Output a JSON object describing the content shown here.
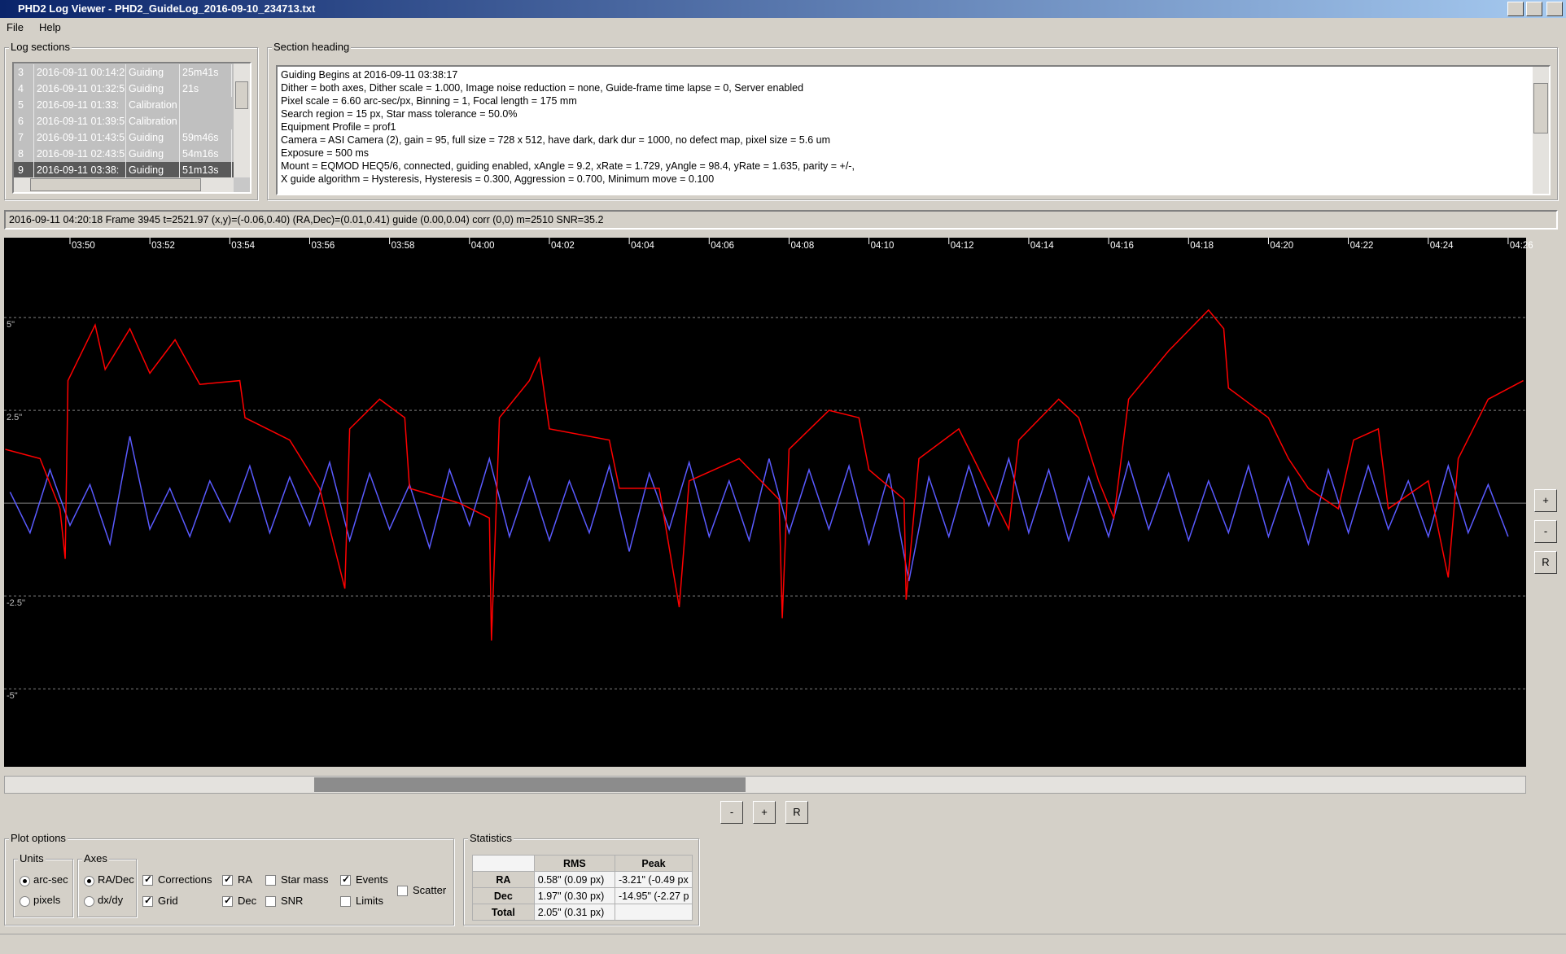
{
  "window": {
    "title": "PHD2 Log Viewer - PHD2_GuideLog_2016-09-10_234713.txt"
  },
  "menu": [
    "File",
    "Help"
  ],
  "log_sections": {
    "label": "Log sections",
    "rows": [
      [
        "3",
        "2016-09-11 00:14:2",
        "Guiding",
        "25m41s"
      ],
      [
        "4",
        "2016-09-11 01:32:5",
        "Guiding",
        "21s"
      ],
      [
        "5",
        "2016-09-11 01:33:",
        "Calibration"
      ],
      [
        "6",
        "2016-09-11 01:39:5",
        "Calibration"
      ],
      [
        "7",
        "2016-09-11 01:43:5",
        "Guiding",
        "59m46s"
      ],
      [
        "8",
        "2016-09-11 02:43:5",
        "Guiding",
        "54m16s"
      ],
      [
        "9",
        "2016-09-11 03:38:",
        "Guiding",
        "51m13s"
      ]
    ],
    "selected": 6
  },
  "section_heading": {
    "label": "Section heading",
    "lines": [
      "Guiding Begins at 2016-09-11 03:38:17",
      "Dither = both axes, Dither scale = 1.000, Image noise reduction = none, Guide-frame time lapse = 0, Server enabled",
      "Pixel scale = 6.60 arc-sec/px, Binning = 1, Focal length = 175 mm",
      "Search region = 15 px, Star mass tolerance = 50.0%",
      "Equipment Profile = prof1",
      "Camera = ASI Camera (2), gain = 95, full size = 728 x 512, have dark, dark dur = 1000, no defect map, pixel size = 5.6 um",
      "Exposure = 500 ms",
      "Mount = EQMOD HEQ5/6,  connected, guiding enabled, xAngle = 9.2, xRate = 1.729, yAngle = 98.4, yRate = 1.635, parity = +/-,",
      "X guide algorithm = Hysteresis, Hysteresis = 0.300, Aggression = 0.700, Minimum move = 0.100"
    ]
  },
  "status": "2016-09-11 04:20:18 Frame 3945 t=2521.97 (x,y)=(-0.06,0.40) (RA,Dec)=(0.01,0.41) guide (0.00,0.04) corr (0,0) m=2510 SNR=35.2",
  "chart_data": {
    "type": "line",
    "grid": true,
    "xlim": [
      228.35,
      266.45
    ],
    "xticks": [
      {
        "value": 230,
        "label": "03:50"
      },
      {
        "value": 232,
        "label": "03:52"
      },
      {
        "value": 234,
        "label": "03:54"
      },
      {
        "value": 236,
        "label": "03:56"
      },
      {
        "value": 238,
        "label": "03:58"
      },
      {
        "value": 240,
        "label": "04:00"
      },
      {
        "value": 242,
        "label": "04:02"
      },
      {
        "value": 244,
        "label": "04:04"
      },
      {
        "value": 246,
        "label": "04:06"
      },
      {
        "value": 248,
        "label": "04:08"
      },
      {
        "value": 250,
        "label": "04:10"
      },
      {
        "value": 252,
        "label": "04:12"
      },
      {
        "value": 254,
        "label": "04:14"
      },
      {
        "value": 256,
        "label": "04:16"
      },
      {
        "value": 258,
        "label": "04:18"
      },
      {
        "value": 260,
        "label": "04:20"
      },
      {
        "value": 262,
        "label": "04:22"
      },
      {
        "value": 264,
        "label": "04:24"
      },
      {
        "value": 266,
        "label": "04:26"
      }
    ],
    "ylim": [
      -7.1,
      7.15
    ],
    "yticks": [
      {
        "value": 5,
        "label": "5\""
      },
      {
        "value": 2.5,
        "label": "2.5\""
      },
      {
        "value": -2.5,
        "label": "-2.5\""
      },
      {
        "value": -5,
        "label": "-5\""
      }
    ],
    "series": [
      {
        "color": "#5a5aff",
        "x": [
          228.5,
          229,
          229.5,
          230,
          230.5,
          231,
          231.5,
          232,
          232.5,
          233,
          233.5,
          234,
          234.5,
          235,
          235.5,
          236,
          236.5,
          237,
          237.5,
          238,
          238.5,
          239,
          239.5,
          240,
          240.5,
          241,
          241.5,
          242,
          242.5,
          243,
          243.5,
          244,
          244.5,
          245,
          245.5,
          246,
          246.5,
          247,
          247.5,
          248,
          248.5,
          249,
          249.5,
          250,
          250.5,
          251,
          251.5,
          252,
          252.5,
          253,
          253.5,
          254,
          254.5,
          255,
          255.5,
          256,
          256.5,
          257,
          257.5,
          258,
          258.5,
          259,
          259.5,
          260,
          260.5,
          261,
          261.5,
          262,
          262.5,
          263,
          263.5,
          264,
          264.5,
          265,
          265.5,
          266
        ],
        "values": [
          0.3,
          -0.8,
          0.9,
          -0.6,
          0.5,
          -1.1,
          1.8,
          -0.7,
          0.4,
          -0.9,
          0.6,
          -0.5,
          1.0,
          -0.8,
          0.7,
          -0.6,
          1.1,
          -1.0,
          0.8,
          -0.7,
          0.5,
          -1.2,
          0.9,
          -0.6,
          1.2,
          -0.9,
          0.7,
          -1.0,
          0.6,
          -0.8,
          1.0,
          -1.3,
          0.8,
          -0.7,
          1.1,
          -0.9,
          0.6,
          -1.0,
          1.2,
          -0.8,
          0.9,
          -0.7,
          1.0,
          -1.1,
          0.8,
          -2.1,
          0.7,
          -0.9,
          1.0,
          -0.6,
          1.2,
          -0.8,
          0.9,
          -1.0,
          0.7,
          -0.9,
          1.1,
          -0.7,
          0.8,
          -1.0,
          0.6,
          -0.8,
          1.0,
          -0.9,
          0.7,
          -1.1,
          0.9,
          -0.8,
          1.0,
          -0.7,
          0.6,
          -0.9,
          1.0,
          -0.8,
          0.5,
          -0.9
        ]
      },
      {
        "color": "#ff0000",
        "x": [
          228.38,
          229.25,
          229.75,
          229.88,
          229.95,
          230.63,
          230.88,
          231.5,
          232,
          232.63,
          233.25,
          234.25,
          234.38,
          235.5,
          236.25,
          236.88,
          237,
          237.75,
          238.38,
          238.5,
          239.75,
          240.5,
          240.55,
          240.75,
          241.5,
          241.75,
          242,
          243.5,
          243.75,
          244.75,
          245.25,
          245.5,
          246.75,
          247.75,
          247.83,
          248,
          249,
          249.75,
          250,
          250.88,
          250.93,
          251.25,
          252.25,
          253.5,
          253.75,
          254.75,
          255.25,
          255.75,
          256.13,
          256.5,
          257.5,
          258.5,
          258.88,
          259,
          260,
          260.5,
          261,
          261.75,
          262.13,
          262.75,
          263,
          264,
          264.5,
          264.75,
          265.5,
          266.38
        ],
        "values": [
          1.45,
          1.2,
          -0.15,
          -1.5,
          3.3,
          4.8,
          3.6,
          4.7,
          3.5,
          4.4,
          3.2,
          3.3,
          2.3,
          1.7,
          0.4,
          -2.3,
          2.0,
          2.8,
          2.3,
          0.4,
          0,
          -0.4,
          -3.7,
          2.3,
          3.3,
          3.9,
          2.0,
          1.7,
          0.4,
          0.4,
          -2.8,
          0.6,
          1.2,
          0.1,
          -3.1,
          1.45,
          2.5,
          2.3,
          0.9,
          0.1,
          -2.6,
          1.2,
          2.0,
          -0.7,
          1.7,
          2.8,
          2.3,
          0.6,
          -0.4,
          2.8,
          4.1,
          5.2,
          4.7,
          3.1,
          2.3,
          1.2,
          0.4,
          -0.15,
          1.7,
          2.0,
          -0.15,
          0.6,
          -2.0,
          1.2,
          2.8,
          3.3
        ]
      }
    ]
  },
  "zoom_buttons": [
    "-",
    "+",
    "R"
  ],
  "side_buttons": [
    "+",
    "-",
    "R"
  ],
  "plot_options": {
    "label": "Plot options",
    "units": {
      "label": "Units",
      "options": [
        {
          "label": "arc-sec",
          "checked": true
        },
        {
          "label": "pixels",
          "checked": false
        }
      ]
    },
    "axes": {
      "label": "Axes",
      "options": [
        {
          "label": "RA/Dec",
          "checked": true
        },
        {
          "label": "dx/dy",
          "checked": false
        }
      ]
    },
    "checkboxes": [
      {
        "label": "Corrections",
        "checked": true
      },
      {
        "label": "Grid",
        "checked": true
      },
      {
        "label": "RA",
        "checked": true
      },
      {
        "label": "Dec",
        "checked": true
      },
      {
        "label": "Star mass",
        "checked": false
      },
      {
        "label": "SNR",
        "checked": false
      },
      {
        "label": "Events",
        "checked": true
      },
      {
        "label": "Limits",
        "checked": false
      },
      {
        "label": "Scatter",
        "checked": false
      }
    ]
  },
  "statistics": {
    "label": "Statistics",
    "header": [
      "RMS",
      "Peak"
    ],
    "rows": [
      [
        "RA",
        "0.58\" (0.09 px)",
        "-3.21\" (-0.49 px"
      ],
      [
        "Dec",
        "1.97\" (0.30 px)",
        "-14.95\" (-2.27 p"
      ],
      [
        "Total",
        "2.05\" (0.31 px)"
      ]
    ]
  }
}
